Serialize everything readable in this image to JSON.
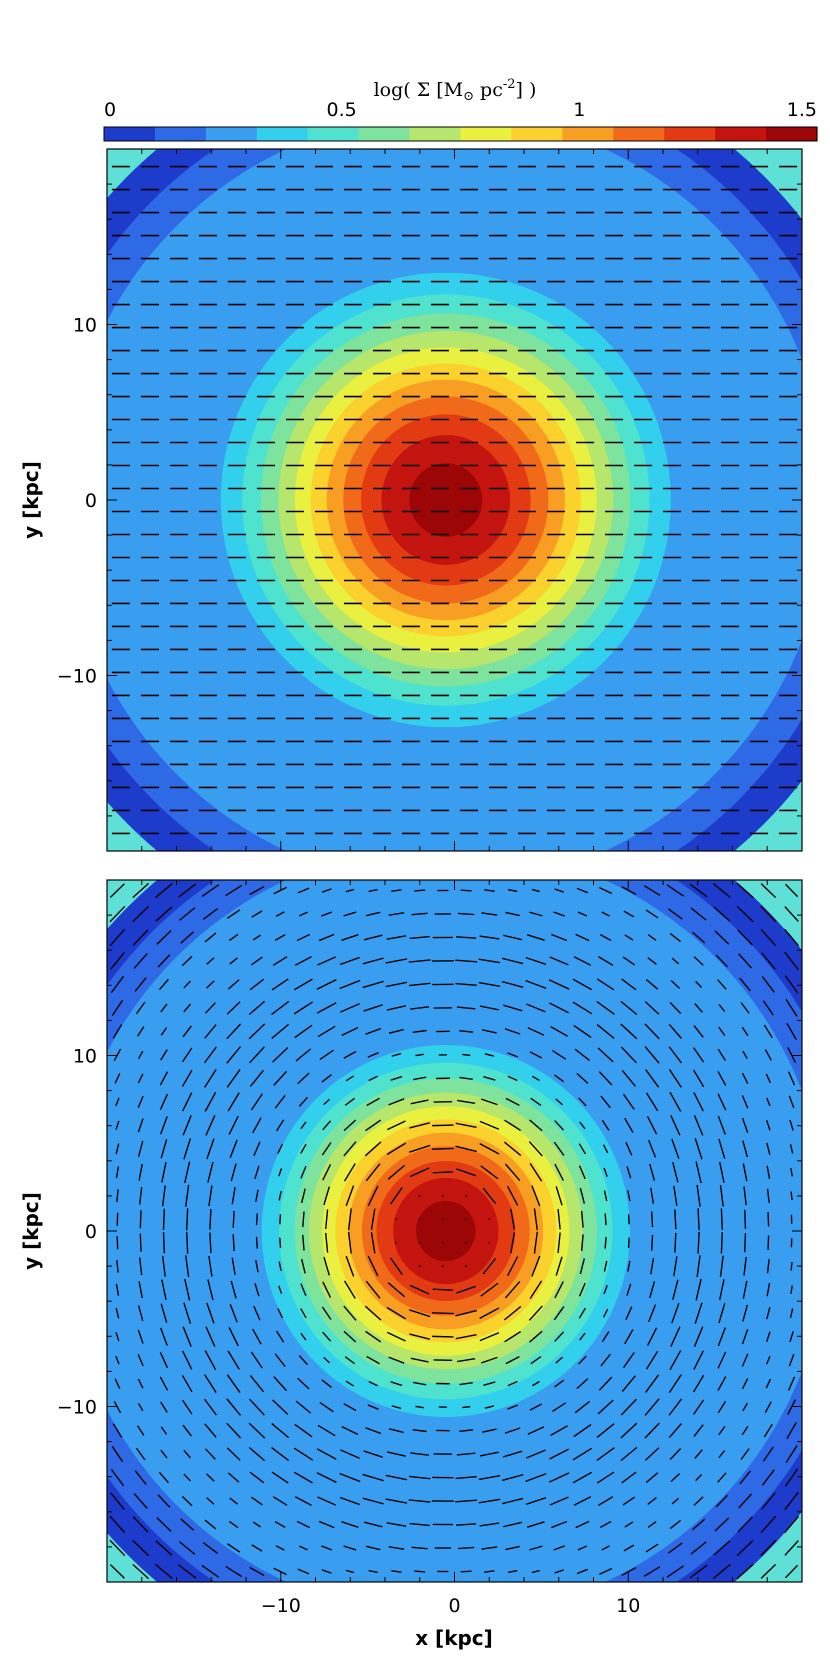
{
  "colorbar": {
    "title_prefix": "log( Σ [M",
    "title_sub": "⊙",
    "title_mid": " pc",
    "title_sup": "-2",
    "title_suffix": "] )",
    "min": 0,
    "max": 1.5,
    "tick_labels": [
      "0",
      "0.5",
      "1",
      "1.5"
    ],
    "tick_values": [
      0,
      0.5,
      1,
      1.5
    ],
    "colors": [
      "#1e3ccc",
      "#2f6ae6",
      "#3a9ef0",
      "#33d0ee",
      "#4fe3cf",
      "#7ee39c",
      "#b6e66b",
      "#eaf03f",
      "#fbd12d",
      "#f79e23",
      "#f06a19",
      "#e23a12",
      "#c4140f",
      "#9c0606"
    ]
  },
  "chart_data": [
    {
      "type": "heatmap",
      "panel": "top",
      "description_field": "surface density with uniform horizontal magnetic field vectors",
      "xlabel": "",
      "ylabel": "y [kpc]",
      "xlim": [
        -20,
        20
      ],
      "ylim": [
        -20,
        20
      ],
      "x_ticks": [
        -10,
        0,
        10
      ],
      "y_ticks": [
        -10,
        0,
        10
      ],
      "y_tick_labels": [
        "−10",
        "0",
        "10"
      ],
      "density_peak": {
        "x": -0.5,
        "y": 0,
        "log_sigma": 1.5
      },
      "density_scale_kpc": 11,
      "vector_field": {
        "pattern": "uniform",
        "angle_deg": 0,
        "rows": 30,
        "cols": 24
      }
    },
    {
      "type": "heatmap",
      "panel": "bottom",
      "xlabel": "x [kpc]",
      "ylabel": "y [kpc]",
      "xlim": [
        -20,
        20
      ],
      "ylim": [
        -20,
        20
      ],
      "x_ticks": [
        -10,
        0,
        10
      ],
      "y_ticks": [
        -10,
        0,
        10
      ],
      "x_tick_labels": [
        "−10",
        "0",
        "10"
      ],
      "y_tick_labels": [
        "−10",
        "0",
        "10"
      ],
      "density_peak": {
        "x": -0.5,
        "y": 0,
        "log_sigma": 1.5
      },
      "density_scale_kpc": 9,
      "vector_field": {
        "pattern": "toroidal",
        "rows": 30,
        "cols": 30
      }
    }
  ]
}
